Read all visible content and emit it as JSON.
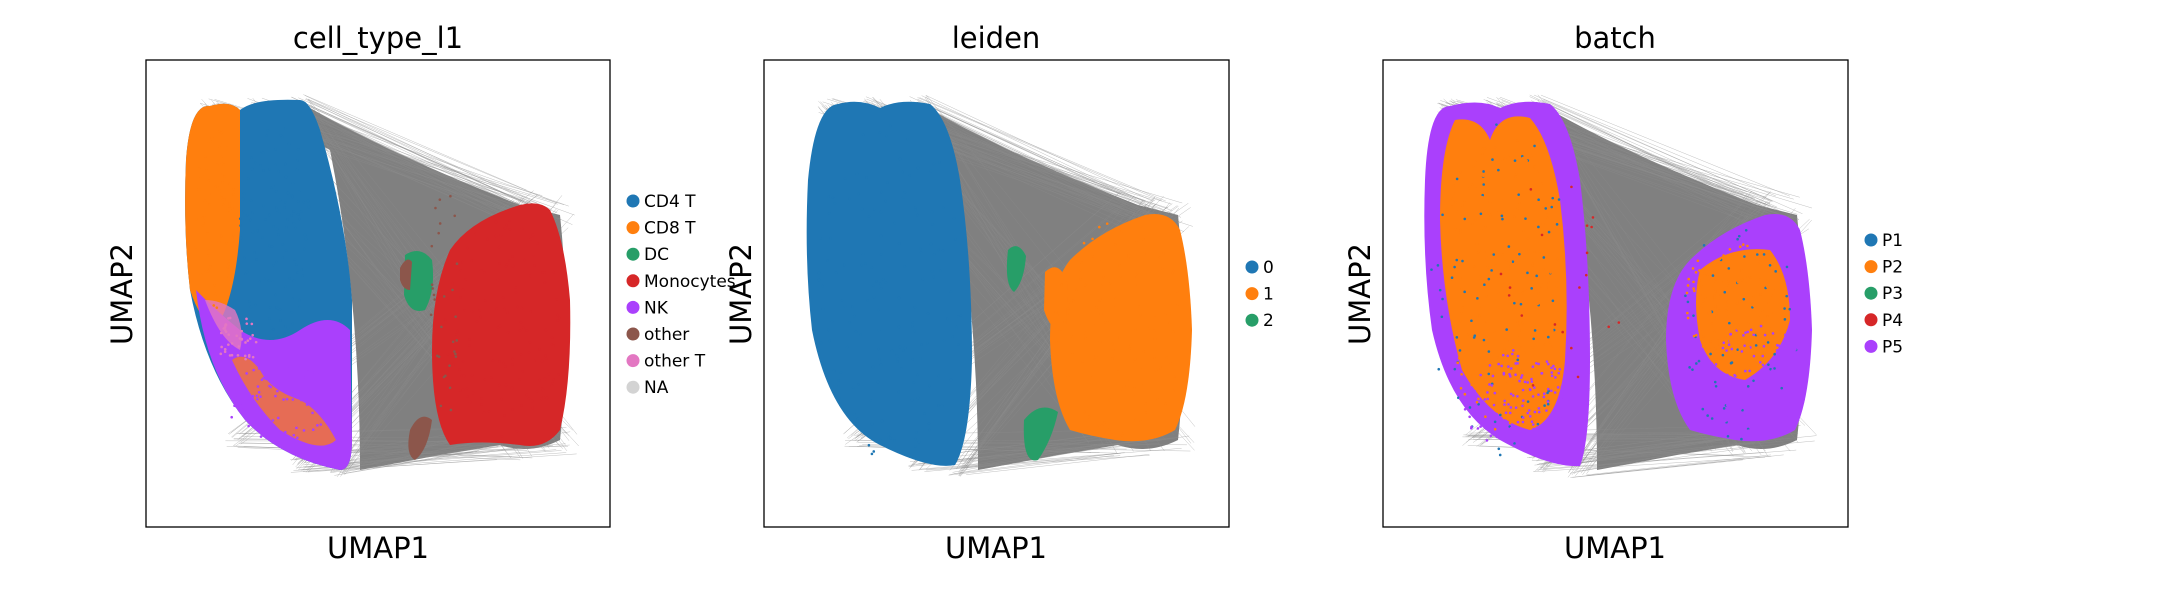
{
  "chart_data": [
    {
      "type": "scatter",
      "title": "cell_type_l1",
      "xlabel": "UMAP1",
      "ylabel": "UMAP2",
      "legend_placement": "right",
      "grid": false,
      "ticks": false,
      "categories": [
        {
          "name": "CD4 T",
          "color": "#1f77b4"
        },
        {
          "name": "CD8 T",
          "color": "#ff7f0e"
        },
        {
          "name": "DC",
          "color": "#279e68"
        },
        {
          "name": "Monocytes",
          "color": "#d62728"
        },
        {
          "name": "NK",
          "color": "#aa40fc"
        },
        {
          "name": "other",
          "color": "#8c564b"
        },
        {
          "name": "other T",
          "color": "#e377c2"
        },
        {
          "name": "NA",
          "color": "#d3d3d3"
        }
      ]
    },
    {
      "type": "scatter",
      "title": "leiden",
      "xlabel": "UMAP1",
      "ylabel": "UMAP2",
      "legend_placement": "right",
      "grid": false,
      "ticks": false,
      "categories": [
        {
          "name": "0",
          "color": "#1f77b4"
        },
        {
          "name": "1",
          "color": "#ff7f0e"
        },
        {
          "name": "2",
          "color": "#279e68"
        }
      ]
    },
    {
      "type": "scatter",
      "title": "batch",
      "xlabel": "UMAP1",
      "ylabel": "UMAP2",
      "legend_placement": "right",
      "grid": false,
      "ticks": false,
      "categories": [
        {
          "name": "P1",
          "color": "#1f77b4"
        },
        {
          "name": "P2",
          "color": "#ff7f0e"
        },
        {
          "name": "P3",
          "color": "#279e68"
        },
        {
          "name": "P4",
          "color": "#d62728"
        },
        {
          "name": "P5",
          "color": "#aa40fc"
        }
      ]
    }
  ],
  "colors": {
    "edges": "#8c8c8c",
    "edge_fill": "#808080",
    "frame": "#000000"
  }
}
